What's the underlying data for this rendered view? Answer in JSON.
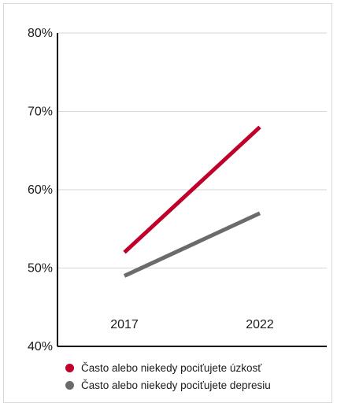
{
  "chart_data": {
    "type": "line",
    "x": [
      "2017",
      "2022"
    ],
    "series": [
      {
        "name": "Často alebo niekedy pociťujete úzkosť",
        "values": [
          52,
          68
        ],
        "color": "#c0002a"
      },
      {
        "name": "Často alebo niekedy pociťujete depresiu",
        "values": [
          49,
          57
        ],
        "color": "#6b6b6b"
      }
    ],
    "ylim": [
      40,
      80
    ],
    "yticks": [
      "40%",
      "50%",
      "60%",
      "70%",
      "80%"
    ],
    "grid": true,
    "legend": "bottom-left"
  }
}
